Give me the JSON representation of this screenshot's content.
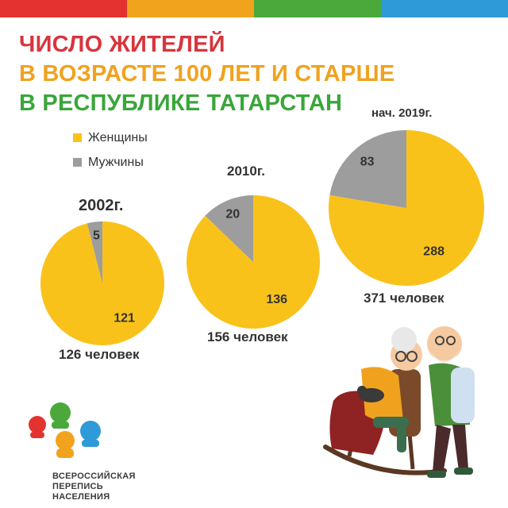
{
  "header": {
    "stripe_colors": [
      "#e3322f",
      "#f2a31d",
      "#4ba93c",
      "#2e9ad7"
    ]
  },
  "title": {
    "lines": [
      {
        "text": "ЧИСЛО ЖИТЕЛЕЙ",
        "color": "#d8353d"
      },
      {
        "text": "В ВОЗРАСТЕ 100 ЛЕТ И СТАРШЕ",
        "color": "#f0a21f"
      },
      {
        "text": "В РЕСПУБЛИКЕ ТАТАРСТАН",
        "color": "#3aa63b"
      }
    ]
  },
  "chart_data": {
    "type": "pie",
    "legend": [
      {
        "name": "Женщины",
        "color": "#f9c21b"
      },
      {
        "name": "Мужчины",
        "color": "#9d9d9d"
      }
    ],
    "legend_position": "top-left",
    "pies": [
      {
        "year_label": "2002г.",
        "total_label": "126 человек",
        "values": {
          "Женщины": 121,
          "Мужчины": 5
        }
      },
      {
        "year_label": "2010г.",
        "total_label": "156 человек",
        "values": {
          "Женщины": 136,
          "Мужчины": 20
        }
      },
      {
        "year_label": "нач. 2019г.",
        "total_label": "371 человек",
        "values": {
          "Женщины": 288,
          "Мужчины": 83
        }
      }
    ]
  },
  "logo": {
    "text_lines": [
      "ВСЕРОССИЙСКАЯ",
      "ПЕРЕПИСЬ",
      "НАСЕЛЕНИЯ"
    ],
    "dot_colors": [
      "#e3322f",
      "#4ba93c",
      "#2e9ad7",
      "#f2a31d"
    ]
  }
}
